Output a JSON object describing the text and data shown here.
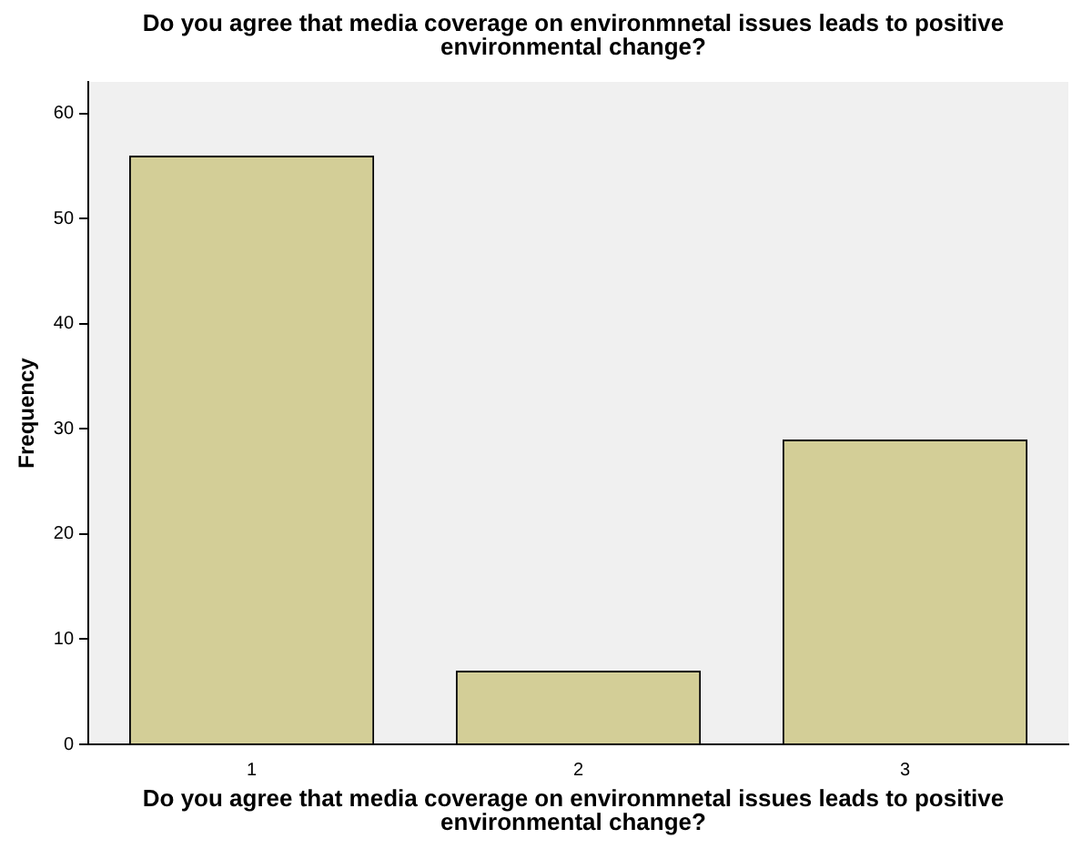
{
  "chart_data": {
    "type": "bar",
    "title": "Do you agree that media coverage on environmnetal issues leads to positive environmental change?",
    "xlabel": "Do you agree that media coverage on environmnetal issues leads to positive environmental change?",
    "ylabel": "Frequency",
    "categories": [
      "1",
      "2",
      "3"
    ],
    "values": [
      56,
      7,
      29
    ],
    "color": "#d3ce97",
    "ylim": [
      0,
      63
    ],
    "yticks": [
      0,
      10,
      20,
      30,
      40,
      50,
      60
    ],
    "grid": false,
    "legend": false
  }
}
